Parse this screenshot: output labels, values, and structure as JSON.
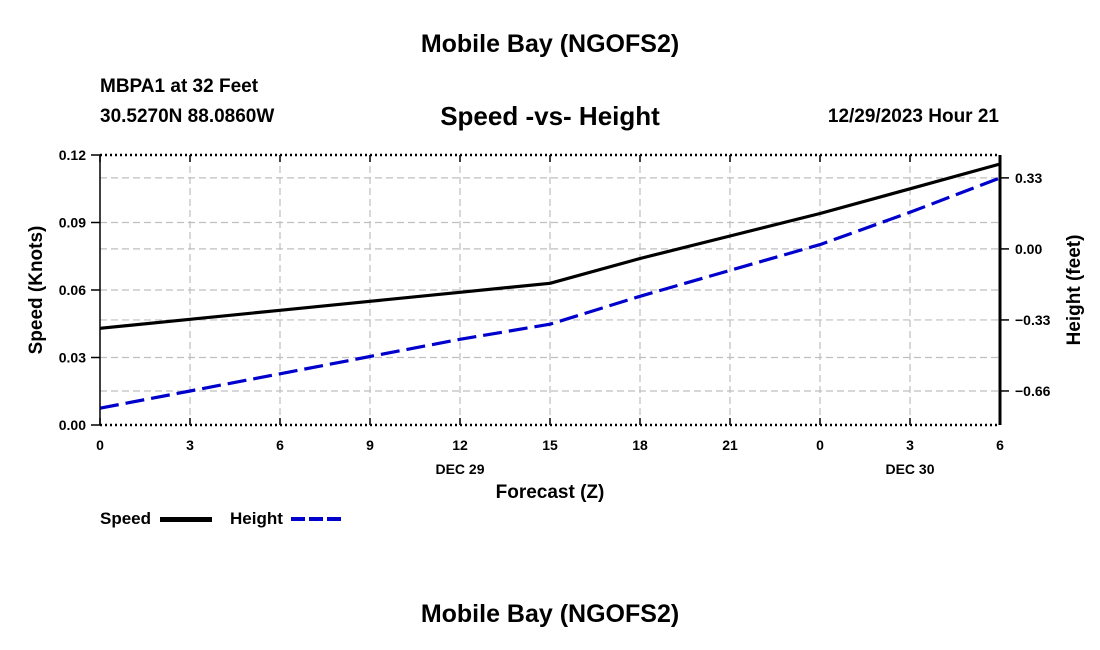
{
  "header": {
    "title": "Mobile Bay (NGOFS2)",
    "station": "MBPA1 at 32 Feet",
    "coordinates": "30.5270N  88.0860W",
    "subtitle": "Speed -vs- Height",
    "datetime": "12/29/2023 Hour 21"
  },
  "footer": {
    "title": "Mobile Bay (NGOFS2)"
  },
  "colors": {
    "speed": "#000000",
    "height": "#0000cc",
    "grid": "#bfbfbf"
  },
  "chart_data": {
    "type": "line",
    "xlabel": "Forecast (Z)",
    "ylabel": "Speed (Knots)",
    "y2label": "Height (feet)",
    "x_hours": [
      0,
      3,
      6,
      9,
      12,
      15,
      18,
      21,
      24,
      27,
      30
    ],
    "x_tick_labels": [
      "0",
      "3",
      "6",
      "9",
      "12",
      "15",
      "18",
      "21",
      "0",
      "3",
      "6"
    ],
    "x_date_labels": [
      {
        "hour": 12,
        "label": "DEC 29"
      },
      {
        "hour": 27,
        "label": "DEC 30"
      }
    ],
    "xlim": [
      0,
      30
    ],
    "ylim": [
      0,
      0.12
    ],
    "y_ticks": [
      "0.00",
      "0.03",
      "0.06",
      "0.09",
      "0.12"
    ],
    "y2lim": [
      -0.8181,
      0.4363
    ],
    "y2_ticks": [
      {
        "value": -0.66,
        "label": "−0.66"
      },
      {
        "value": -0.33,
        "label": "−0.33"
      },
      {
        "value": 0.0,
        "label": "0.00"
      },
      {
        "value": 0.33,
        "label": "0.33"
      }
    ],
    "grid": true,
    "legend_position": "bottom-left",
    "series": [
      {
        "name": "Speed",
        "axis": "left",
        "style": "solid",
        "x": [
          0,
          3,
          6,
          9,
          12,
          15,
          18,
          21,
          24,
          27,
          30
        ],
        "values": [
          0.043,
          0.047,
          0.051,
          0.055,
          0.059,
          0.063,
          0.074,
          0.084,
          0.094,
          0.105,
          0.116
        ]
      },
      {
        "name": "Height",
        "axis": "right",
        "style": "dashed",
        "x": [
          0,
          3,
          6,
          9,
          12,
          15,
          18,
          21,
          24,
          27,
          30
        ],
        "values": [
          -0.74,
          -0.66,
          -0.58,
          -0.5,
          -0.42,
          -0.35,
          -0.22,
          -0.1,
          0.02,
          0.17,
          0.33
        ]
      }
    ]
  }
}
